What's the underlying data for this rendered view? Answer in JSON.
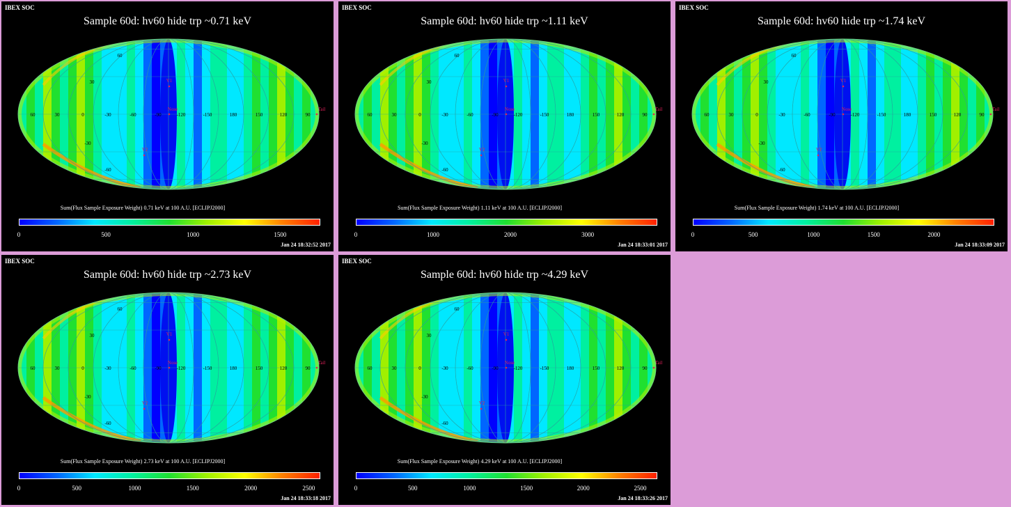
{
  "panels": [
    {
      "header": "IBEX SOC",
      "title": "Sample 60d: hv60 hide trp ~0.71 keV",
      "caption": "Sum(Flux Sample Exposure Weight)  0.71 keV at 100 A.U. [ECLIPJ2000]",
      "colorbar": {
        "min": 0,
        "max": 1730,
        "ticks": [
          0,
          500,
          1000,
          1500
        ]
      },
      "timestamp": "Jan 24 18:32:52 2017"
    },
    {
      "header": "IBEX SOC",
      "title": "Sample 60d: hv60 hide trp ~1.11 keV",
      "caption": "Sum(Flux Sample Exposure Weight)  1.11 keV at 100 A.U. [ECLIPJ2000]",
      "colorbar": {
        "min": 0,
        "max": 3900,
        "ticks": [
          0,
          1000,
          2000,
          3000
        ]
      },
      "timestamp": "Jan 24 18:33:01 2017"
    },
    {
      "header": "IBEX SOC",
      "title": "Sample 60d: hv60 hide trp ~1.74 keV",
      "caption": "Sum(Flux Sample Exposure Weight)  1.74 keV at 100 A.U. [ECLIPJ2000]",
      "colorbar": {
        "min": 0,
        "max": 2500,
        "ticks": [
          0,
          500,
          1000,
          1500,
          2000
        ]
      },
      "timestamp": "Jan 24 18:33:09 2017"
    },
    {
      "header": "IBEX SOC",
      "title": "Sample 60d: hv60 hide trp ~2.73 keV",
      "caption": "Sum(Flux Sample Exposure Weight)  2.73 keV at 100 A.U. [ECLIPJ2000]",
      "colorbar": {
        "min": 0,
        "max": 2600,
        "ticks": [
          0,
          500,
          1000,
          1500,
          2000,
          2500
        ]
      },
      "timestamp": "Jan 24 18:33:18 2017"
    },
    {
      "header": "IBEX SOC",
      "title": "Sample 60d: hv60 hide trp ~4.29 keV",
      "caption": "Sum(Flux Sample Exposure Weight)  4.29 keV at 100 A.U. [ECLIPJ2000]",
      "colorbar": {
        "min": 0,
        "max": 2650,
        "ticks": [
          0,
          500,
          1000,
          1500,
          2000,
          2500
        ]
      },
      "timestamp": "Jan 24 18:33:26 2017"
    }
  ],
  "map": {
    "projection": "Mollweide",
    "lon_labels": [
      "60",
      "30",
      "0",
      "-30",
      "-60",
      "-90",
      "-120",
      "-150",
      "180",
      "150",
      "120",
      "90"
    ],
    "lat_labels": [
      "60",
      "30",
      "-30",
      "-60"
    ],
    "markers": [
      "V1",
      "Nose",
      "V2",
      "Tail"
    ]
  },
  "colors": {
    "background": "#dc9cd8",
    "panel": "#000000",
    "marker": "#e0205a",
    "gradient": [
      "#0000ff",
      "#0066ff",
      "#00e8ff",
      "#00f0a0",
      "#20e030",
      "#a0f000",
      "#ffff00",
      "#ff8000",
      "#ff2000"
    ]
  }
}
